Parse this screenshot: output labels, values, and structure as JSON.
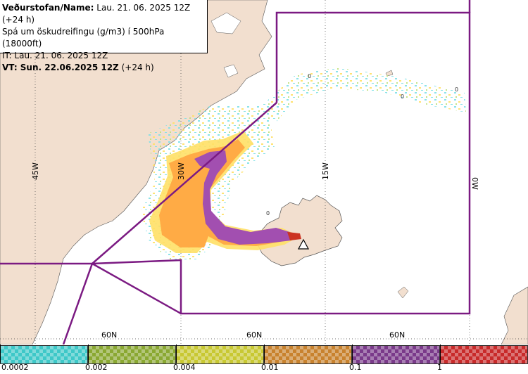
{
  "header": {
    "name_label": "Veðurstofan/Name:",
    "name_value": "Lau. 21. 06. 2025 12Z (+24 h)",
    "product": "Spá um öskudreifingu (g/m3) í 500hPa (18000ft)",
    "issue_time": "IT: Lau. 21. 06. 2025 12Z",
    "valid_label": "VT: Sun. 22.06.2025 12Z",
    "valid_offset": "(+24 h)"
  },
  "grid_labels": {
    "lon_45w": "45W",
    "lon_30w": "30W",
    "lon_15w": "15W",
    "lon_0w": "0W",
    "lat_60n_a": "60N",
    "lat_60n_b": "60N",
    "lat_60n_c": "60N"
  },
  "map_markers": {
    "zero_1": "0",
    "zero_2": "0",
    "zero_3": "0",
    "zero_4": "0"
  },
  "legend": {
    "ticks": [
      "0.0002",
      "0.002",
      "0.004",
      "0.01",
      "0.1",
      "1"
    ],
    "colors": [
      "#3ec8c8",
      "#8aa832",
      "#c8c832",
      "#c8822e",
      "#7a3a8a",
      "#c82a2a"
    ]
  },
  "colors": {
    "land": "#f2dfcf",
    "sea": "#ffffff",
    "boundary": "#7b1a82",
    "ash_low": "#ffd84a",
    "ash_mid": "#ffab45",
    "ash_high": "#a24fb0",
    "ash_max": "#cc3322"
  }
}
